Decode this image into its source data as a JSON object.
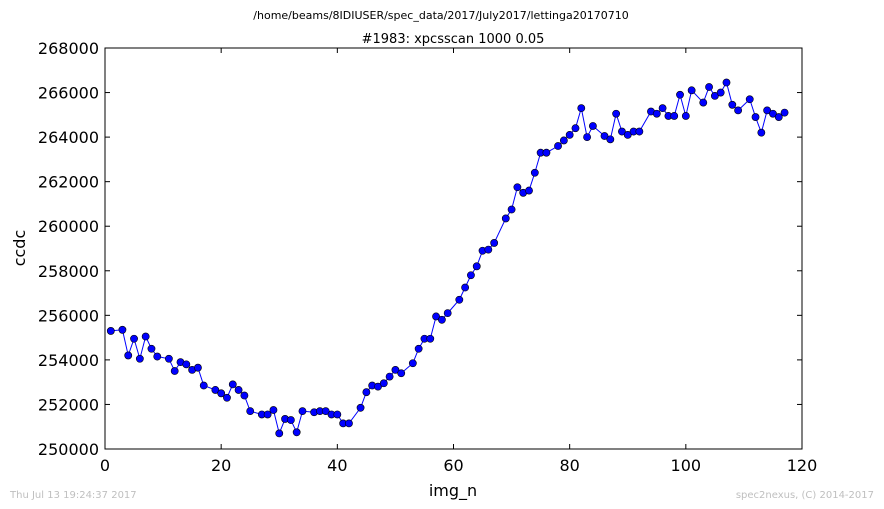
{
  "suptitle": "/home/beams/8IDIUSER/spec_data/2017/July2017/lettinga20170710",
  "footer": {
    "timestamp": "Thu Jul 13 19:24:37 2017",
    "credit": "spec2nexus, (C) 2014-2017"
  },
  "colors": {
    "line": "#0000ff",
    "marker": "#0000ff",
    "axes": "#000000"
  },
  "chart_data": {
    "type": "line",
    "title": "#1983: xpcsscan 1000 0.05",
    "xlabel": "img_n",
    "ylabel": "ccdc",
    "xlim": [
      0,
      120
    ],
    "ylim": [
      250000,
      268000
    ],
    "xticks": [
      0,
      20,
      40,
      60,
      80,
      100,
      120
    ],
    "yticks": [
      250000,
      252000,
      254000,
      256000,
      258000,
      260000,
      262000,
      264000,
      266000,
      268000
    ],
    "grid": false,
    "legend": "none",
    "series": [
      {
        "x": [
          1,
          3,
          4,
          5,
          6,
          7,
          8,
          9,
          11,
          12,
          13,
          14,
          15,
          16,
          17,
          19,
          20,
          21,
          22,
          23,
          24,
          25,
          27,
          28,
          29,
          30,
          31,
          32,
          33,
          34,
          36,
          37,
          38,
          39,
          40,
          41,
          42,
          44,
          45,
          46,
          47,
          48,
          49,
          50,
          51,
          53,
          54,
          55,
          56,
          57,
          58,
          59,
          61,
          62,
          63,
          64,
          65,
          66,
          67,
          69,
          70,
          71,
          72,
          73,
          74,
          75,
          76,
          78,
          79,
          80,
          81,
          82,
          83,
          84,
          86,
          87,
          88,
          89,
          90,
          91,
          92,
          94,
          95,
          96,
          97,
          98,
          99,
          100,
          101,
          103,
          104,
          105,
          106,
          107,
          108,
          109,
          111,
          112,
          113,
          114,
          115,
          116,
          117
        ],
        "y": [
          255300,
          255350,
          254200,
          254950,
          254050,
          255050,
          254500,
          254150,
          254050,
          253500,
          253900,
          253800,
          253550,
          253650,
          252850,
          252650,
          252500,
          252300,
          252900,
          252650,
          252400,
          251700,
          251550,
          251550,
          251750,
          250700,
          251350,
          251300,
          250750,
          251700,
          251650,
          251700,
          251700,
          251550,
          251550,
          251150,
          251150,
          251850,
          252550,
          252850,
          252800,
          252950,
          253250,
          253550,
          253400,
          253850,
          254500,
          254950,
          254950,
          255950,
          255800,
          256100,
          256700,
          257250,
          257800,
          258200,
          258900,
          258950,
          259250,
          260350,
          260750,
          261750,
          261500,
          261600,
          262400,
          263300,
          263300,
          263600,
          263850,
          264100,
          264400,
          265300,
          264000,
          264500,
          264050,
          263900,
          265050,
          264250,
          264100,
          264250,
          264250,
          265150,
          265050,
          265300,
          264950,
          264950,
          265900,
          264950,
          266100,
          265550,
          266250,
          265850,
          266000,
          266450,
          265450,
          265200,
          265700,
          264900,
          264200,
          265200,
          265050,
          264900,
          265100
        ]
      }
    ]
  }
}
